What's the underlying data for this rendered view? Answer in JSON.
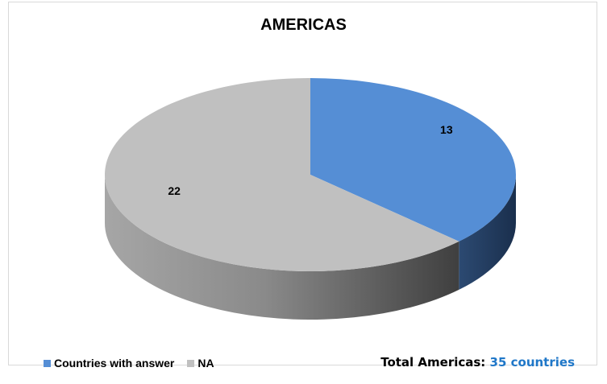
{
  "chart_data": {
    "type": "pie",
    "title": "AMERICAS",
    "slices": [
      {
        "label": "Countries with answer",
        "value": 13,
        "color": "#558ed5"
      },
      {
        "label": "NA",
        "value": 22,
        "color": "#c0c0c0"
      }
    ],
    "legend_position": "bottom",
    "three_d": true
  },
  "footer": {
    "total_label": "Total Americas:",
    "total_value": "35 countries"
  },
  "colors": {
    "accent": "#1f77c8",
    "answer_side": "#1f3a5f",
    "na_side": "#8c8c8c"
  }
}
